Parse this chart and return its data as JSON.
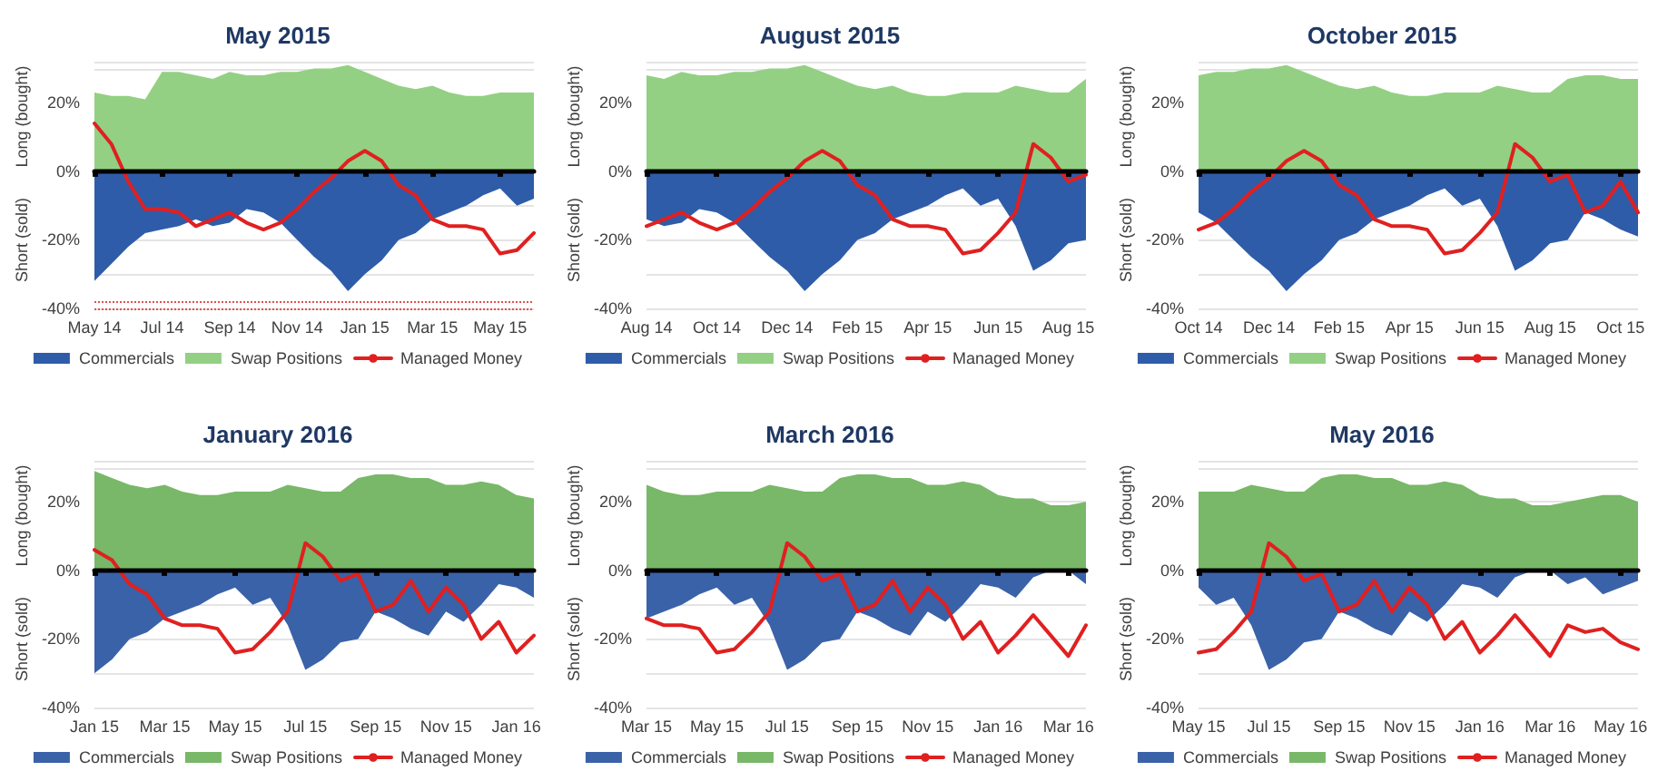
{
  "chart_data": [
    {
      "type": "area",
      "title": "May 2015",
      "ylabel": "Long (bought)",
      "annotations": [
        "Short (sold)"
      ],
      "legend": "bottom",
      "grid": "y",
      "marker": "none",
      "categories": [
        "May 14",
        null,
        null,
        null,
        "Jul 14",
        null,
        null,
        null,
        "Sep 14",
        null,
        null,
        null,
        "Nov 14",
        null,
        null,
        null,
        "Jan 15",
        null,
        null,
        null,
        "Mar 15",
        null,
        null,
        null,
        "May 15",
        null,
        null
      ],
      "ylim": [
        -40,
        32
      ],
      "yticks": [
        {
          "value": -40,
          "label": "-40%"
        },
        {
          "value": -20,
          "label": "-20%"
        },
        {
          "value": 0,
          "label": "0%"
        },
        {
          "value": 20,
          "label": "20%"
        }
      ],
      "ref_lines": [
        {
          "axis": "y",
          "value": -38,
          "label": null,
          "color": "#e05050",
          "line_style": "dotted"
        },
        {
          "axis": "y",
          "value": -40,
          "label": null,
          "color": "#e05050",
          "line_style": "dotted"
        }
      ],
      "series": [
        {
          "name": "Commercials",
          "color": "#2f5ca8",
          "values": [
            -32,
            -27,
            -22,
            -18,
            -17,
            -16,
            -14,
            -16,
            -15,
            -11,
            -12,
            -15,
            -20,
            -25,
            -29,
            -35,
            -30,
            -26,
            -20,
            -18,
            -14,
            -12,
            -10,
            -7,
            -5,
            -10,
            -8
          ]
        },
        {
          "name": "Swap Positions",
          "color": "#93d083",
          "values": [
            23,
            22,
            22,
            21,
            29,
            29,
            28,
            27,
            29,
            28,
            28,
            29,
            29,
            30,
            30,
            31,
            29,
            27,
            25,
            24,
            25,
            23,
            22,
            22,
            23,
            23,
            23
          ]
        },
        {
          "name": "Managed Money",
          "type": "line",
          "color": "#e02020",
          "values": [
            14,
            8,
            -3,
            -11,
            -11,
            -12,
            -16,
            -14,
            -12,
            -15,
            -17,
            -15,
            -11,
            -6,
            -2,
            3,
            6,
            3,
            -4,
            -7,
            -14,
            -16,
            -16,
            -17,
            -24,
            -23,
            -18
          ]
        }
      ]
    },
    {
      "type": "area",
      "title": "August 2015",
      "ylabel": "Long (bought)",
      "annotations": [
        "Short (sold)"
      ],
      "legend": "bottom",
      "grid": "y",
      "marker": "none",
      "categories": [
        "Aug 14",
        null,
        null,
        null,
        "Oct 14",
        null,
        null,
        null,
        "Dec 14",
        null,
        null,
        null,
        "Feb 15",
        null,
        null,
        null,
        "Apr 15",
        null,
        null,
        null,
        "Jun 15",
        null,
        null,
        null,
        "Aug 15",
        null
      ],
      "ylim": [
        -40,
        32
      ],
      "yticks": [
        {
          "value": -40,
          "label": "-40%"
        },
        {
          "value": -20,
          "label": "-20%"
        },
        {
          "value": 0,
          "label": "0%"
        },
        {
          "value": 20,
          "label": "20%"
        }
      ],
      "series": [
        {
          "name": "Commercials",
          "color": "#2f5ca8",
          "values": [
            -14,
            -16,
            -15,
            -11,
            -12,
            -15,
            -20,
            -25,
            -29,
            -35,
            -30,
            -26,
            -20,
            -18,
            -14,
            -12,
            -10,
            -7,
            -5,
            -10,
            -8,
            -16,
            -29,
            -26,
            -21,
            -20
          ]
        },
        {
          "name": "Swap Positions",
          "color": "#93d083",
          "values": [
            28,
            27,
            29,
            28,
            28,
            29,
            29,
            30,
            30,
            31,
            29,
            27,
            25,
            24,
            25,
            23,
            22,
            22,
            23,
            23,
            23,
            25,
            24,
            23,
            23,
            27
          ]
        },
        {
          "name": "Managed Money",
          "type": "line",
          "color": "#e02020",
          "values": [
            -16,
            -14,
            -12,
            -15,
            -17,
            -15,
            -11,
            -6,
            -2,
            3,
            6,
            3,
            -4,
            -7,
            -14,
            -16,
            -16,
            -17,
            -24,
            -23,
            -18,
            -12,
            8,
            4,
            -3,
            -1
          ]
        }
      ]
    },
    {
      "type": "area",
      "title": "October 2015",
      "ylabel": "Long (bought)",
      "annotations": [
        "Short (sold)"
      ],
      "legend": "bottom",
      "grid": "y",
      "marker": "none",
      "categories": [
        "Oct 14",
        null,
        null,
        null,
        "Dec 14",
        null,
        null,
        null,
        "Feb 15",
        null,
        null,
        null,
        "Apr 15",
        null,
        null,
        null,
        "Jun 15",
        null,
        null,
        null,
        "Aug 15",
        null,
        null,
        null,
        "Oct 15",
        null
      ],
      "ylim": [
        -40,
        32
      ],
      "yticks": [
        {
          "value": -40,
          "label": "-40%"
        },
        {
          "value": -20,
          "label": "-20%"
        },
        {
          "value": 0,
          "label": "0%"
        },
        {
          "value": 20,
          "label": "20%"
        }
      ],
      "series": [
        {
          "name": "Commercials",
          "color": "#2f5ca8",
          "values": [
            -12,
            -15,
            -20,
            -25,
            -29,
            -35,
            -30,
            -26,
            -20,
            -18,
            -14,
            -12,
            -10,
            -7,
            -5,
            -10,
            -8,
            -16,
            -29,
            -26,
            -21,
            -20,
            -12,
            -14,
            -17,
            -19
          ]
        },
        {
          "name": "Swap Positions",
          "color": "#93d083",
          "values": [
            28,
            29,
            29,
            30,
            30,
            31,
            29,
            27,
            25,
            24,
            25,
            23,
            22,
            22,
            23,
            23,
            23,
            25,
            24,
            23,
            23,
            27,
            28,
            28,
            27,
            27
          ]
        },
        {
          "name": "Managed Money",
          "type": "line",
          "color": "#e02020",
          "values": [
            -17,
            -15,
            -11,
            -6,
            -2,
            3,
            6,
            3,
            -4,
            -7,
            -14,
            -16,
            -16,
            -17,
            -24,
            -23,
            -18,
            -12,
            8,
            4,
            -3,
            -1,
            -12,
            -10,
            -3,
            -12
          ]
        }
      ]
    },
    {
      "type": "area",
      "title": "January 2016",
      "ylabel": "Long (bought)",
      "annotations": [
        "Short (sold)"
      ],
      "legend": "bottom",
      "grid": "y",
      "marker": "none",
      "categories": [
        "Jan 15",
        null,
        null,
        null,
        "Mar 15",
        null,
        null,
        null,
        "May 15",
        null,
        null,
        null,
        "Jul 15",
        null,
        null,
        null,
        "Sep 15",
        null,
        null,
        null,
        "Nov 15",
        null,
        null,
        null,
        "Jan 16",
        null
      ],
      "ylim": [
        -40,
        32
      ],
      "yticks": [
        {
          "value": -40,
          "label": "-40%"
        },
        {
          "value": -20,
          "label": "-20%"
        },
        {
          "value": 0,
          "label": "0%"
        },
        {
          "value": 20,
          "label": "20%"
        }
      ],
      "series": [
        {
          "name": "Commercials",
          "color": "#3a62a8",
          "values": [
            -30,
            -26,
            -20,
            -18,
            -14,
            -12,
            -10,
            -7,
            -5,
            -10,
            -8,
            -16,
            -29,
            -26,
            -21,
            -20,
            -12,
            -14,
            -17,
            -19,
            -12,
            -15,
            -10,
            -4,
            -5,
            -8
          ]
        },
        {
          "name": "Swap Positions",
          "color": "#78b868",
          "values": [
            29,
            27,
            25,
            24,
            25,
            23,
            22,
            22,
            23,
            23,
            23,
            25,
            24,
            23,
            23,
            27,
            28,
            28,
            27,
            27,
            25,
            25,
            26,
            25,
            22,
            21
          ]
        },
        {
          "name": "Managed Money",
          "type": "line",
          "color": "#e02020",
          "values": [
            6,
            3,
            -4,
            -7,
            -14,
            -16,
            -16,
            -17,
            -24,
            -23,
            -18,
            -12,
            8,
            4,
            -3,
            -1,
            -12,
            -10,
            -3,
            -12,
            -5,
            -10,
            -20,
            -15,
            -24,
            -19
          ]
        }
      ]
    },
    {
      "type": "area",
      "title": "March 2016",
      "ylabel": "Long (bought)",
      "annotations": [
        "Short (sold)"
      ],
      "legend": "bottom",
      "grid": "y",
      "marker": "none",
      "categories": [
        "Mar 15",
        null,
        null,
        null,
        "May 15",
        null,
        null,
        null,
        "Jul 15",
        null,
        null,
        null,
        "Sep 15",
        null,
        null,
        null,
        "Nov 15",
        null,
        null,
        null,
        "Jan 16",
        null,
        null,
        null,
        "Mar 16",
        null
      ],
      "ylim": [
        -40,
        32
      ],
      "yticks": [
        {
          "value": -40,
          "label": "-40%"
        },
        {
          "value": -20,
          "label": "-20%"
        },
        {
          "value": 0,
          "label": "0%"
        },
        {
          "value": 20,
          "label": "20%"
        }
      ],
      "series": [
        {
          "name": "Commercials",
          "color": "#3a62a8",
          "values": [
            -14,
            -12,
            -10,
            -7,
            -5,
            -10,
            -8,
            -16,
            -29,
            -26,
            -21,
            -20,
            -12,
            -14,
            -17,
            -19,
            -12,
            -15,
            -10,
            -4,
            -5,
            -8,
            -2,
            0,
            0,
            -4
          ]
        },
        {
          "name": "Swap Positions",
          "color": "#78b868",
          "values": [
            25,
            23,
            22,
            22,
            23,
            23,
            23,
            25,
            24,
            23,
            23,
            27,
            28,
            28,
            27,
            27,
            25,
            25,
            26,
            25,
            22,
            21,
            21,
            19,
            19,
            20
          ]
        },
        {
          "name": "Managed Money",
          "type": "line",
          "color": "#e02020",
          "values": [
            -14,
            -16,
            -16,
            -17,
            -24,
            -23,
            -18,
            -12,
            8,
            4,
            -3,
            -1,
            -12,
            -10,
            -3,
            -12,
            -5,
            -10,
            -20,
            -15,
            -24,
            -19,
            -13,
            -19,
            -25,
            -16
          ]
        }
      ]
    },
    {
      "type": "area",
      "title": "May 2016",
      "ylabel": "Long (bought)",
      "annotations": [
        "Short (sold)"
      ],
      "legend": "bottom",
      "grid": "y",
      "marker": "none",
      "categories": [
        "May 15",
        null,
        null,
        null,
        "Jul 15",
        null,
        null,
        null,
        "Sep 15",
        null,
        null,
        null,
        "Nov 15",
        null,
        null,
        null,
        "Jan 16",
        null,
        null,
        null,
        "Mar 16",
        null,
        null,
        null,
        "May 16",
        null
      ],
      "ylim": [
        -40,
        32
      ],
      "yticks": [
        {
          "value": -40,
          "label": "-40%"
        },
        {
          "value": -20,
          "label": "-20%"
        },
        {
          "value": 0,
          "label": "0%"
        },
        {
          "value": 20,
          "label": "20%"
        }
      ],
      "series": [
        {
          "name": "Commercials",
          "color": "#3a62a8",
          "values": [
            -5,
            -10,
            -8,
            -16,
            -29,
            -26,
            -21,
            -20,
            -12,
            -14,
            -17,
            -19,
            -12,
            -15,
            -10,
            -4,
            -5,
            -8,
            -2,
            0,
            0,
            -4,
            -2,
            -7,
            -5,
            -3
          ]
        },
        {
          "name": "Swap Positions",
          "color": "#78b868",
          "values": [
            23,
            23,
            23,
            25,
            24,
            23,
            23,
            27,
            28,
            28,
            27,
            27,
            25,
            25,
            26,
            25,
            22,
            21,
            21,
            19,
            19,
            20,
            21,
            22,
            22,
            20
          ]
        },
        {
          "name": "Managed Money",
          "type": "line",
          "color": "#e02020",
          "values": [
            -24,
            -23,
            -18,
            -12,
            8,
            4,
            -3,
            -1,
            -12,
            -10,
            -3,
            -12,
            -5,
            -10,
            -20,
            -15,
            -24,
            -19,
            -13,
            -19,
            -25,
            -16,
            -18,
            -17,
            -21,
            -23
          ]
        }
      ]
    }
  ]
}
